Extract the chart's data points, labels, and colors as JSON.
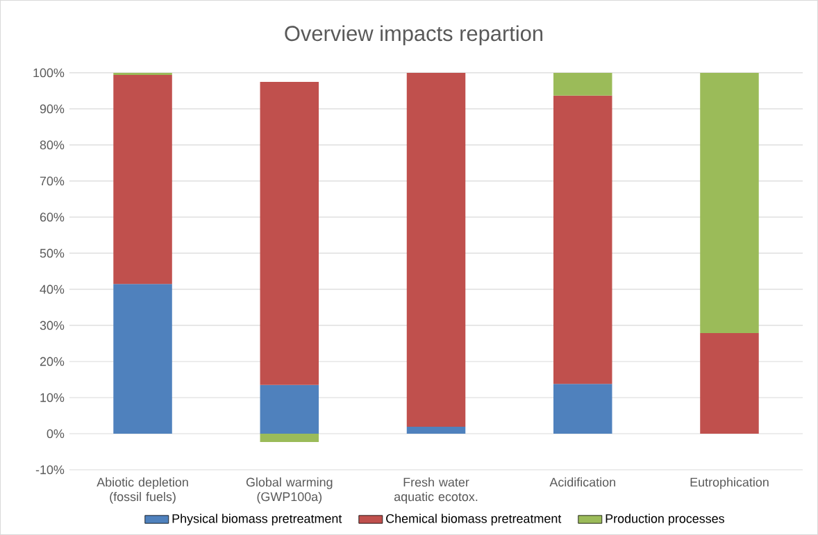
{
  "chart_data": {
    "type": "bar",
    "title": "Overview impacts repartion",
    "stacked": true,
    "categories": [
      "Abiotic depletion (fossil fuels)",
      "Global warming (GWP100a)",
      "Fresh water aquatic ecotox.",
      "Acidification",
      "Eutrophication"
    ],
    "series": [
      {
        "name": "Physical biomass pretreatment",
        "color": "#4f81bd",
        "values": [
          41.5,
          13.5,
          1.9,
          13.8,
          0
        ]
      },
      {
        "name": "Chemical biomass pretreatment",
        "color": "#c0504d",
        "values": [
          57.9,
          84.0,
          98.1,
          79.9,
          27.9
        ]
      },
      {
        "name": "Production processes",
        "color": "#9bbb59",
        "values": [
          0.6,
          -2.3,
          0,
          6.3,
          72.1
        ]
      }
    ],
    "ylim": [
      -10,
      100
    ],
    "yticks": [
      {
        "value": -10,
        "label": "-10%"
      },
      {
        "value": 0,
        "label": "0%"
      },
      {
        "value": 10,
        "label": "10%"
      },
      {
        "value": 20,
        "label": "20%"
      },
      {
        "value": 30,
        "label": "30%"
      },
      {
        "value": 40,
        "label": "40%"
      },
      {
        "value": 50,
        "label": "50%"
      },
      {
        "value": 60,
        "label": "60%"
      },
      {
        "value": 70,
        "label": "70%"
      },
      {
        "value": 80,
        "label": "80%"
      },
      {
        "value": 90,
        "label": "90%"
      },
      {
        "value": 100,
        "label": "100%"
      }
    ],
    "grid": "y",
    "legend": "bottom"
  }
}
